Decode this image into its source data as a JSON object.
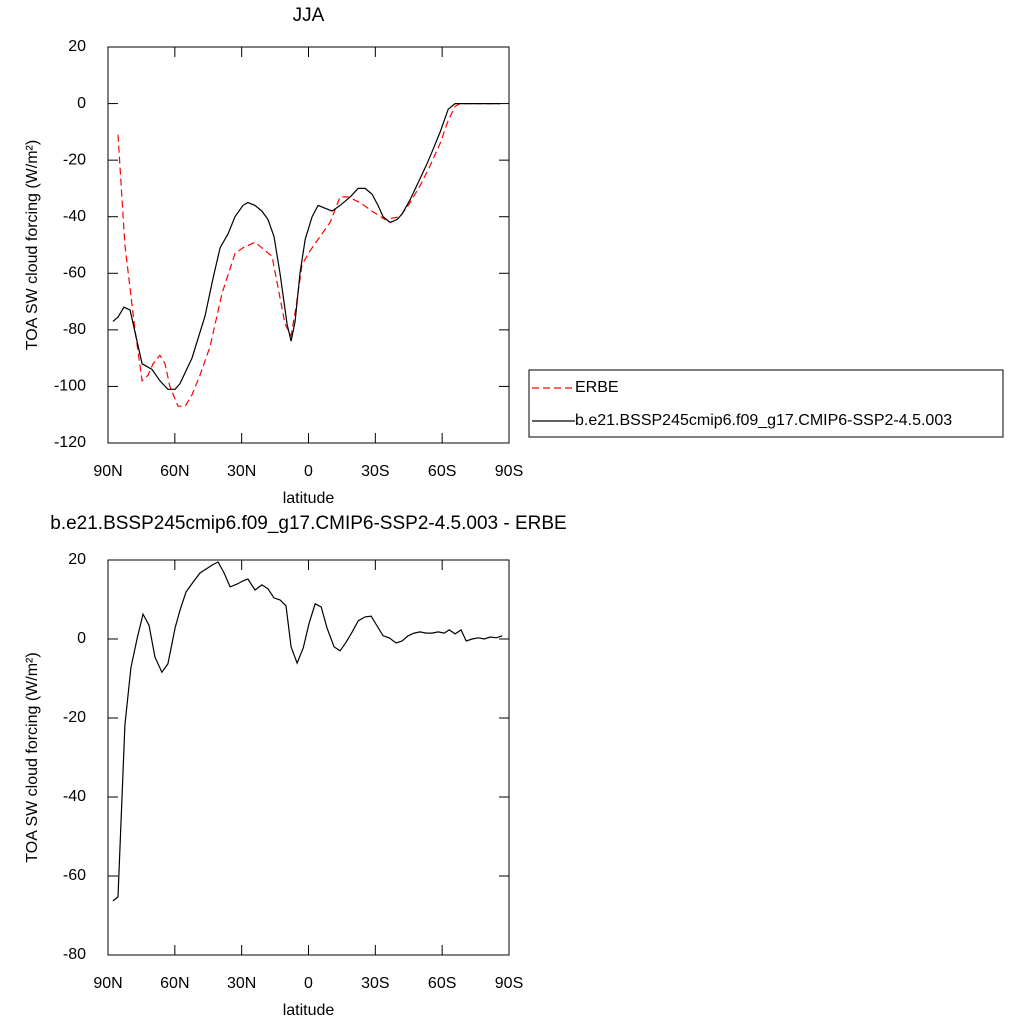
{
  "chart_data": [
    {
      "type": "line",
      "title": "JJA",
      "x_label": "latitude",
      "y_label": "TOA SW cloud forcing (W/m²)",
      "xlim": [
        90,
        -90
      ],
      "xticks": [
        {
          "value": 90,
          "label": "90N"
        },
        {
          "value": 60,
          "label": "60N"
        },
        {
          "value": 30,
          "label": "30N"
        },
        0,
        {
          "value": -30,
          "label": "30S"
        },
        {
          "value": -60,
          "label": "60S"
        },
        {
          "value": -90,
          "label": "90S"
        }
      ],
      "ylim": [
        -120,
        20
      ],
      "yticks": [
        -120,
        -100,
        -80,
        -60,
        -40,
        -20,
        0,
        20
      ],
      "legend": "right",
      "series": [
        {
          "name": "ERBE",
          "color": "#ff0000",
          "dash": true,
          "x": [
            85.5,
            82.4,
            77.9,
            74.7,
            72.0,
            69.8,
            66.7,
            64.4,
            62.2,
            58.6,
            55.4,
            52.3,
            48.7,
            44.2,
            38.8,
            33.0,
            29.4,
            24.0,
            20.9,
            16.4,
            13.7,
            10.5,
            7.8,
            5.6,
            2.9,
            -0.7,
            -5.2,
            -9.7,
            -14.2,
            -17.8,
            -23.1,
            -28.5,
            -34.4,
            -41.1,
            -45.6,
            -50.1,
            -54.6,
            -59.1,
            -62.7,
            -65.8,
            -68.0,
            -72.5,
            -79.3,
            -86.0
          ],
          "values": [
            -11,
            -50,
            -80,
            -98,
            -96,
            -92,
            -89,
            -92,
            -100,
            -107,
            -107,
            -103,
            -96,
            -86,
            -67,
            -53,
            -51,
            -49,
            -51,
            -54,
            -65,
            -78,
            -82,
            -72,
            -57,
            -52,
            -47,
            -42,
            -33,
            -33,
            -35,
            -38,
            -41,
            -40,
            -35,
            -29,
            -22,
            -14,
            -6,
            -1,
            0,
            0,
            0,
            0
          ]
        },
        {
          "name": "b.e21.BSSP245cmip6.f09_g17.CMIP6-SSP2-4.5.003",
          "color": "#000000",
          "dash": false,
          "x": [
            87.8,
            85.5,
            82.8,
            80.1,
            74.7,
            70.2,
            66.7,
            63.1,
            59.9,
            57.7,
            52.3,
            46.4,
            42.9,
            39.7,
            36.1,
            33.0,
            29.4,
            27.2,
            24.0,
            20.9,
            18.2,
            15.5,
            12.8,
            9.6,
            7.8,
            6.0,
            3.8,
            1.5,
            -1.6,
            -4.3,
            -7.4,
            -10.6,
            -14.2,
            -18.7,
            -22.3,
            -25.4,
            -28.5,
            -31.2,
            -33.5,
            -36.6,
            -39.8,
            -42.0,
            -45.6,
            -49.2,
            -52.8,
            -55.5,
            -59.1,
            -62.7,
            -65.8,
            -72.5,
            -79.3,
            -86.0
          ],
          "values": [
            -77,
            -75.5,
            -72,
            -73,
            -92,
            -94,
            -98,
            -101,
            -101,
            -99,
            -90,
            -75,
            -62,
            -51,
            -46,
            -40,
            -36,
            -35,
            -36,
            -38,
            -41,
            -47,
            -60,
            -78,
            -84,
            -77,
            -60,
            -48,
            -40,
            -36,
            -37,
            -38,
            -36,
            -33,
            -30,
            -30,
            -32,
            -36,
            -40,
            -42,
            -41,
            -39,
            -34,
            -28,
            -22,
            -17,
            -10,
            -2,
            0,
            0,
            0,
            0
          ]
        }
      ]
    },
    {
      "type": "line",
      "title": "b.e21.BSSP245cmip6.f09_g17.CMIP6-SSP2-4.5.003 - ERBE",
      "x_label": "latitude",
      "y_label": "TOA SW cloud forcing (W/m²)",
      "xlim": [
        90,
        -90
      ],
      "xticks": [
        {
          "value": 90,
          "label": "90N"
        },
        {
          "value": 60,
          "label": "60N"
        },
        {
          "value": 30,
          "label": "30N"
        },
        0,
        {
          "value": -30,
          "label": "30S"
        },
        {
          "value": -60,
          "label": "60S"
        },
        {
          "value": -90,
          "label": "90S"
        }
      ],
      "ylim": [
        -80,
        20
      ],
      "yticks": [
        -80,
        -60,
        -40,
        -20,
        0,
        20
      ],
      "color": "#000000",
      "x": [
        87.8,
        85.5,
        82.4,
        79.7,
        77.0,
        74.3,
        71.6,
        68.9,
        65.8,
        63.1,
        59.9,
        57.7,
        55.0,
        51.8,
        48.7,
        46.0,
        43.3,
        40.6,
        37.9,
        35.2,
        32.1,
        29.4,
        27.2,
        24.0,
        20.9,
        18.2,
        15.5,
        12.8,
        10.1,
        7.8,
        5.1,
        2.4,
        -0.3,
        -3.0,
        -5.7,
        -8.3,
        -11.5,
        -14.2,
        -16.9,
        -19.6,
        -22.3,
        -25.4,
        -28.1,
        -30.8,
        -33.5,
        -36.2,
        -39.3,
        -42.0,
        -44.7,
        -47.4,
        -50.1,
        -52.8,
        -55.5,
        -58.2,
        -60.9,
        -63.2,
        -65.8,
        -68.5,
        -70.8,
        -73.5,
        -76.2,
        -78.9,
        -81.6,
        -84.3,
        -87.0
      ],
      "values": [
        -66.3,
        -65.3,
        -21.8,
        -7.3,
        0,
        6.3,
        3.5,
        -4.6,
        -8.4,
        -6.3,
        2.8,
        7.3,
        11.9,
        14.4,
        16.7,
        17.7,
        18.7,
        19.5,
        16.7,
        13.2,
        13.9,
        14.7,
        15.2,
        12.4,
        13.7,
        12.7,
        10.4,
        9.9,
        8.4,
        -2.0,
        -6.1,
        -2.3,
        4.1,
        8.9,
        8.1,
        2.8,
        -2.0,
        -3.0,
        -0.8,
        1.8,
        4.6,
        5.6,
        5.8,
        3.3,
        0.8,
        0.3,
        -1.0,
        -0.5,
        0.8,
        1.5,
        1.8,
        1.5,
        1.5,
        1.8,
        1.5,
        2.3,
        1.3,
        2.3,
        -0.5,
        0,
        0.3,
        0,
        0.5,
        0.3,
        0.8
      ]
    }
  ]
}
